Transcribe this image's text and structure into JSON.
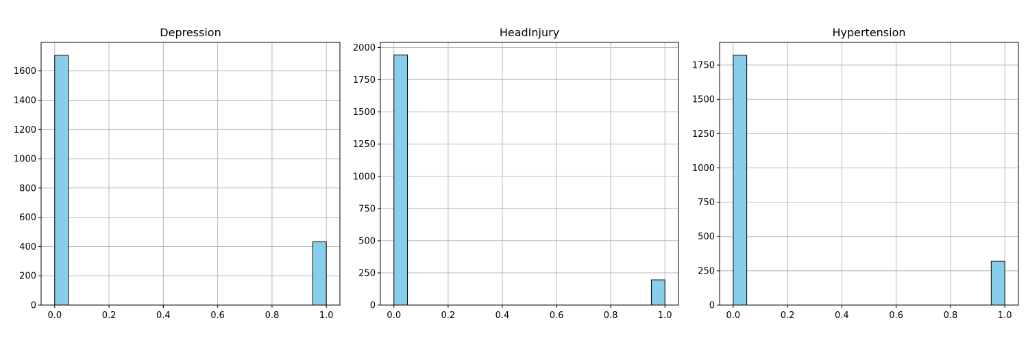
{
  "chart_data": [
    {
      "type": "bar",
      "title": "Depression",
      "xlabel": "",
      "ylabel": "",
      "xlim": [
        -0.05,
        1.05
      ],
      "ylim": [
        0,
        1795
      ],
      "x_ticks": [
        "0.0",
        "0.2",
        "0.4",
        "0.6",
        "0.8",
        "1.0"
      ],
      "y_ticks": [
        "0",
        "200",
        "400",
        "600",
        "800",
        "1000",
        "1200",
        "1400",
        "1600"
      ],
      "bins": [
        {
          "start": 0.0,
          "end": 0.05,
          "value": 1707
        },
        {
          "start": 0.95,
          "end": 1.0,
          "value": 432
        }
      ],
      "grid": true,
      "bar_color": "#87ceeb",
      "edge_color": "#000000"
    },
    {
      "type": "bar",
      "title": "HeadInjury",
      "xlabel": "",
      "ylabel": "",
      "xlim": [
        -0.05,
        1.05
      ],
      "ylim": [
        0,
        2040
      ],
      "x_ticks": [
        "0.0",
        "0.2",
        "0.4",
        "0.6",
        "0.8",
        "1.0"
      ],
      "y_ticks": [
        "0",
        "250",
        "500",
        "750",
        "1000",
        "1250",
        "1500",
        "1750",
        "2000"
      ],
      "bins": [
        {
          "start": 0.0,
          "end": 0.05,
          "value": 1943
        },
        {
          "start": 0.95,
          "end": 1.0,
          "value": 196
        }
      ],
      "grid": true,
      "bar_color": "#87ceeb",
      "edge_color": "#000000"
    },
    {
      "type": "bar",
      "title": "Hypertension",
      "xlabel": "",
      "ylabel": "",
      "xlim": [
        -0.05,
        1.05
      ],
      "ylim": [
        0,
        1915
      ],
      "x_ticks": [
        "0.0",
        "0.2",
        "0.4",
        "0.6",
        "0.8",
        "1.0"
      ],
      "y_ticks": [
        "0",
        "250",
        "500",
        "750",
        "1000",
        "1250",
        "1500",
        "1750"
      ],
      "bins": [
        {
          "start": 0.0,
          "end": 0.05,
          "value": 1822
        },
        {
          "start": 0.95,
          "end": 1.0,
          "value": 319
        }
      ],
      "grid": true,
      "bar_color": "#87ceeb",
      "edge_color": "#000000"
    }
  ]
}
